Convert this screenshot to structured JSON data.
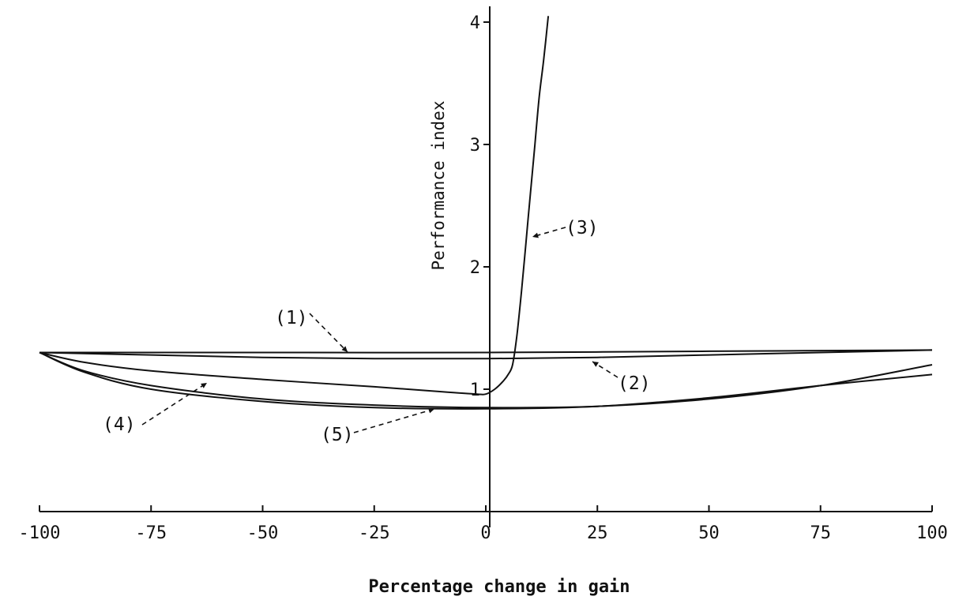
{
  "chart_data": {
    "type": "line",
    "title": "",
    "xlabel": "Percentage change in gain",
    "ylabel": "Performance index",
    "xlim": [
      -100,
      100
    ],
    "ylim": [
      0,
      4
    ],
    "x_ticks": [
      -100,
      -75,
      -50,
      -25,
      0,
      25,
      50,
      75,
      100
    ],
    "y_ticks": [
      1,
      2,
      3,
      4
    ],
    "grid": false,
    "legend": "none",
    "series": [
      {
        "name": "(1)",
        "x": [
          -100,
          -50,
          0,
          50,
          100
        ],
        "y": [
          1.3,
          1.3,
          1.3,
          1.31,
          1.32
        ]
      },
      {
        "name": "(2)",
        "x": [
          -100,
          -75,
          -50,
          -25,
          0,
          25,
          50,
          75,
          100
        ],
        "y": [
          1.3,
          1.28,
          1.26,
          1.25,
          1.25,
          1.26,
          1.28,
          1.3,
          1.32
        ]
      },
      {
        "name": "(3)",
        "x": [
          -100,
          -90,
          -75,
          -50,
          -25,
          -10,
          -2,
          0,
          2,
          4,
          5,
          6,
          7,
          8,
          9,
          10,
          11,
          12,
          13,
          14
        ],
        "y": [
          1.3,
          1.22,
          1.15,
          1.08,
          1.02,
          0.98,
          0.96,
          0.96,
          1.0,
          1.07,
          1.12,
          1.2,
          1.45,
          1.8,
          2.2,
          2.6,
          3.0,
          3.4,
          3.7,
          4.05
        ]
      },
      {
        "name": "(4)",
        "x": [
          -100,
          -90,
          -75,
          -50,
          -25,
          0,
          25,
          50,
          75,
          100
        ],
        "y": [
          1.3,
          1.15,
          1.03,
          0.92,
          0.87,
          0.85,
          0.86,
          0.92,
          1.03,
          1.2
        ]
      },
      {
        "name": "(5)",
        "x": [
          -100,
          -90,
          -75,
          -50,
          -25,
          0,
          25,
          50,
          75,
          100
        ],
        "y": [
          1.3,
          1.14,
          1.0,
          0.9,
          0.85,
          0.84,
          0.86,
          0.93,
          1.03,
          1.12
        ]
      }
    ]
  }
}
